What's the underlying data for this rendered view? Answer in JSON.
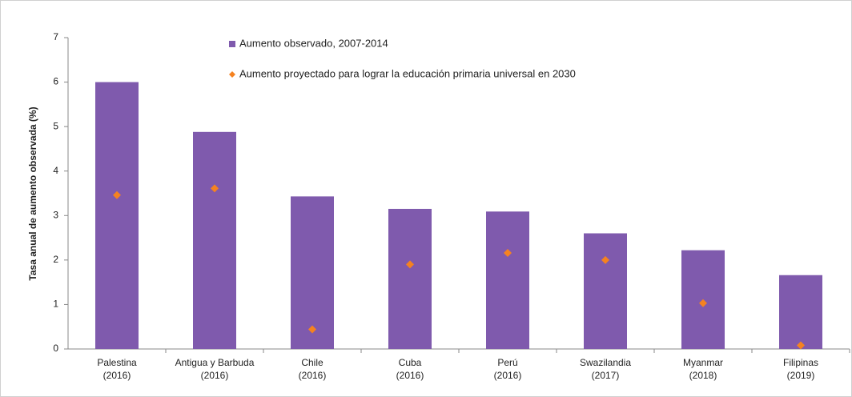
{
  "chart_data": {
    "type": "bar",
    "ylabel": "Tasa anual de aumento observada (%)",
    "categories": [
      [
        "Palestina",
        "(2016)"
      ],
      [
        "Antigua y Barbuda",
        "(2016)"
      ],
      [
        "Chile",
        "(2016)"
      ],
      [
        "Cuba",
        "(2016)"
      ],
      [
        "Perú",
        "(2016)"
      ],
      [
        "Swazilandia",
        "(2017)"
      ],
      [
        "Myanmar",
        "(2018)"
      ],
      [
        "Filipinas",
        "(2019)"
      ]
    ],
    "series": [
      {
        "name": "Aumento observado, 2007-2014",
        "color": "#7f5aad",
        "kind": "bar",
        "values": [
          6.0,
          4.88,
          3.43,
          3.15,
          3.09,
          2.6,
          2.22,
          1.66
        ]
      },
      {
        "name": "Aumento proyectado para lograr la educación primaria universal en 2030",
        "color": "#f58220",
        "kind": "diamond",
        "values": [
          3.46,
          3.61,
          0.44,
          1.9,
          2.16,
          2.0,
          1.03,
          0.08
        ]
      }
    ],
    "ylim": [
      0,
      7
    ],
    "yticks": [
      0,
      1,
      2,
      3,
      4,
      5,
      6,
      7
    ],
    "grid": false
  }
}
